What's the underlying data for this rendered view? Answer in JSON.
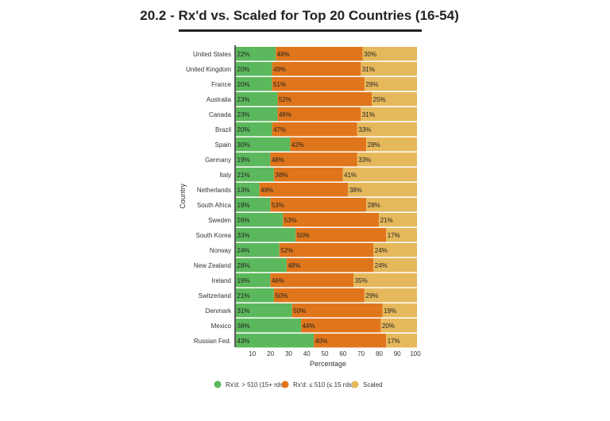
{
  "chart_data": {
    "type": "bar",
    "orientation": "horizontal",
    "stacked": true,
    "title": "20.2 - Rx'd vs. Scaled for Top 20 Countries (16-54)",
    "xlabel": "Percentage",
    "ylabel": "Country",
    "xlim": [
      0,
      100
    ],
    "xticks": [
      10,
      20,
      30,
      40,
      50,
      60,
      70,
      80,
      90,
      100
    ],
    "legend_position": "bottom",
    "categories": [
      "United States",
      "United Kingdom",
      "France",
      "Australia",
      "Canada",
      "Brazil",
      "Spain",
      "Germany",
      "Italy",
      "Netherlands",
      "South Africa",
      "Sweden",
      "South Korea",
      "Norway",
      "New Zealand",
      "Ireland",
      "Switzerland",
      "Denmark",
      "Mexico",
      "Russian Fed."
    ],
    "series": [
      {
        "name": "Rx'd: > 510 (15+ rds)",
        "color": "#5cb85c",
        "values": [
          22,
          20,
          20,
          23,
          23,
          20,
          30,
          19,
          21,
          13,
          19,
          26,
          33,
          24,
          28,
          19,
          21,
          31,
          36,
          43
        ]
      },
      {
        "name": "Rx'd: ≤ 510 (≤ 15 rds)",
        "color": "#e0761c",
        "values": [
          48,
          49,
          51,
          52,
          46,
          47,
          42,
          48,
          38,
          49,
          53,
          53,
          50,
          52,
          48,
          46,
          50,
          50,
          44,
          40
        ]
      },
      {
        "name": "Scaled",
        "color": "#e6b85c",
        "values": [
          30,
          31,
          29,
          25,
          31,
          33,
          28,
          33,
          41,
          38,
          28,
          21,
          17,
          24,
          24,
          35,
          29,
          19,
          20,
          17
        ]
      }
    ]
  }
}
